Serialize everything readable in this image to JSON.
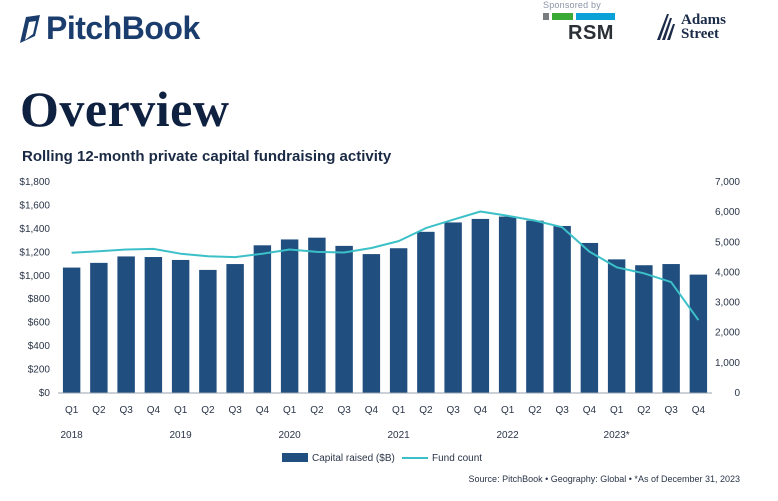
{
  "header": {
    "brand": "PitchBook",
    "sponsor_label": "Sponsored by",
    "sponsor_name": "RSM",
    "partner_line1": "Adams",
    "partner_line2": "Street"
  },
  "page_title": "Overview",
  "colors": {
    "bar": "#1f4e7f",
    "line": "#3cc0c8",
    "brand": "#1b3d6e",
    "rsm_gray": "#7a7d80",
    "rsm_green": "#3aa935",
    "rsm_blue": "#0aa0d8"
  },
  "chart_data": {
    "type": "bar",
    "title": "Rolling 12-month private capital fundraising activity",
    "categories": [
      "Q1",
      "Q2",
      "Q3",
      "Q4",
      "Q1",
      "Q2",
      "Q3",
      "Q4",
      "Q1",
      "Q2",
      "Q3",
      "Q4",
      "Q1",
      "Q2",
      "Q3",
      "Q4",
      "Q1",
      "Q2",
      "Q3",
      "Q4",
      "Q1",
      "Q2",
      "Q3",
      "Q4"
    ],
    "year_labels": [
      {
        "label": "2018",
        "index": 0
      },
      {
        "label": "2019",
        "index": 4
      },
      {
        "label": "2020",
        "index": 8
      },
      {
        "label": "2021",
        "index": 12
      },
      {
        "label": "2022",
        "index": 16
      },
      {
        "label": "2023*",
        "index": 20
      }
    ],
    "series": [
      {
        "name": "Capital raised ($B)",
        "type": "bar",
        "axis": "left",
        "values": [
          1070,
          1110,
          1165,
          1160,
          1135,
          1050,
          1100,
          1260,
          1310,
          1325,
          1255,
          1185,
          1235,
          1375,
          1455,
          1485,
          1505,
          1470,
          1425,
          1280,
          1140,
          1090,
          1100,
          1010
        ]
      },
      {
        "name": "Fund count",
        "type": "line",
        "axis": "right",
        "values": [
          4650,
          4700,
          4760,
          4780,
          4620,
          4540,
          4510,
          4620,
          4760,
          4680,
          4660,
          4810,
          5040,
          5470,
          5750,
          6020,
          5880,
          5720,
          5500,
          4690,
          4170,
          3970,
          3680,
          2420
        ]
      }
    ],
    "y_left": {
      "min": 0,
      "max": 1800,
      "ticks": [
        0,
        200,
        400,
        600,
        800,
        1000,
        1200,
        1400,
        1600,
        1800
      ],
      "tick_labels": [
        "$0",
        "$200",
        "$400",
        "$600",
        "$800",
        "$1,000",
        "$1,200",
        "$1,400",
        "$1,600",
        "$1,800"
      ]
    },
    "y_right": {
      "min": 0,
      "max": 7000,
      "ticks": [
        0,
        1000,
        2000,
        3000,
        4000,
        5000,
        6000,
        7000
      ],
      "tick_labels": [
        "0",
        "1,000",
        "2,000",
        "3,000",
        "4,000",
        "5,000",
        "6,000",
        "7,000"
      ]
    },
    "legend_position": "bottom-center",
    "grid": false,
    "source": "Source: PitchBook  •  Geography: Global  •  *As of December 31, 2023"
  }
}
